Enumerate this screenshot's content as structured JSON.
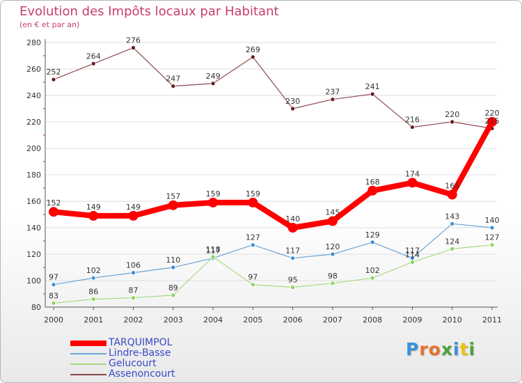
{
  "header": {
    "title": "Evolution des Impôts locaux par Habitant",
    "subtitle": "(en € et par an)"
  },
  "logo": {
    "text": "Proxiti",
    "letters": [
      {
        "ch": "P",
        "color": "#3a8fd8"
      },
      {
        "ch": "r",
        "color": "#e8702a"
      },
      {
        "ch": "o",
        "color": "#e8702a"
      },
      {
        "ch": "x",
        "color": "#4aa53c"
      },
      {
        "ch": "i",
        "color": "#3a8fd8"
      },
      {
        "ch": "t",
        "color": "#e8c21a"
      },
      {
        "ch": "i",
        "color": "#4aa53c"
      }
    ]
  },
  "chart_data": {
    "type": "line",
    "title": "Evolution des Impôts locaux par Habitant",
    "subtitle": "(en € et par an)",
    "xlabel": "",
    "ylabel": "",
    "categories": [
      "2000",
      "2001",
      "2002",
      "2003",
      "2004",
      "2005",
      "2006",
      "2007",
      "2008",
      "2009",
      "2010",
      "2011"
    ],
    "ylim": [
      80,
      280
    ],
    "yticks": [
      80,
      100,
      120,
      140,
      160,
      180,
      200,
      220,
      240,
      260,
      280
    ],
    "grid": true,
    "legend_position": "bottom-left",
    "series": [
      {
        "name": "Assenoncourt",
        "color": "#6b1a1f",
        "values": [
          252,
          264,
          276,
          247,
          249,
          269,
          230,
          237,
          241,
          216,
          220,
          215
        ],
        "labels": [
          "252",
          "264",
          "276",
          "247",
          "249",
          "269",
          "230",
          "237",
          "241",
          "216",
          "220",
          "215"
        ]
      },
      {
        "name": "Lindre-Basse",
        "color": "#3a8fd8",
        "values": [
          97,
          102,
          106,
          110,
          117,
          127,
          117,
          120,
          129,
          117,
          143,
          140
        ],
        "labels": [
          "97",
          "102",
          "106",
          "110",
          "117",
          "127",
          "117",
          "120",
          "129",
          "117",
          "143",
          "140"
        ]
      },
      {
        "name": "Gelucourt",
        "color": "#8ed45a",
        "values": [
          83,
          86,
          87,
          89,
          118,
          97,
          95,
          98,
          102,
          114,
          124,
          127
        ],
        "labels": [
          "83",
          "86",
          "87",
          "89",
          "118",
          "97",
          "95",
          "98",
          "102",
          "114",
          "124",
          "127"
        ]
      },
      {
        "name": "TARQUIMPOL",
        "color": "#ff0000",
        "values": [
          152,
          149,
          149,
          157,
          159,
          159,
          140,
          145,
          168,
          174,
          165,
          220
        ],
        "labels": [
          "152",
          "149",
          "149",
          "157",
          "159",
          "159",
          "140",
          "145",
          "168",
          "174",
          "165",
          "220"
        ]
      }
    ],
    "legend_order": [
      "TARQUIMPOL",
      "Lindre-Basse",
      "Gelucourt",
      "Assenoncourt"
    ]
  }
}
